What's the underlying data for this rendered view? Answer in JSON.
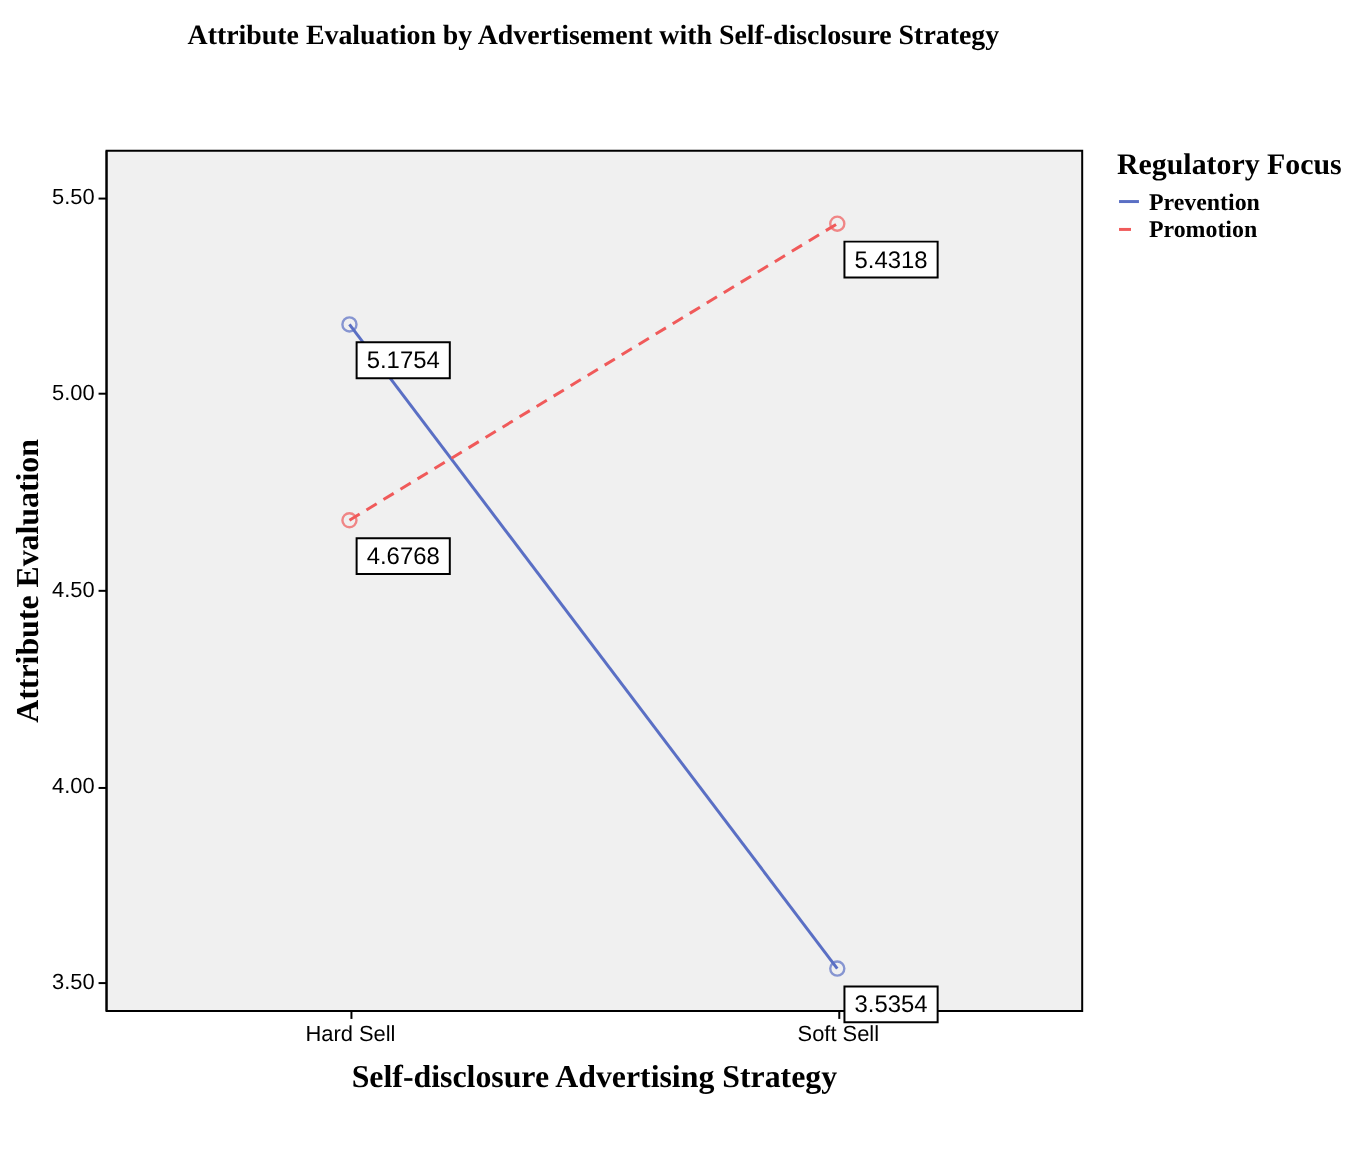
{
  "chart_data": {
    "type": "line",
    "title": "Attribute Evaluation by Advertisement with Self-disclosure Strategy",
    "xlabel": "Self-disclosure Advertising Strategy",
    "ylabel": "Attribute Evaluation",
    "legend_title": "Regulatory Focus",
    "categories": [
      "Hard Sell",
      "Soft Sell"
    ],
    "series": [
      {
        "name": "Prevention",
        "color": "#5a6fc4",
        "line_style": "solid",
        "values": [
          5.1754,
          3.5354
        ]
      },
      {
        "name": "Promotion",
        "color": "#f05a5a",
        "line_style": "dashed",
        "values": [
          4.6768,
          5.4318
        ]
      }
    ],
    "ylim": [
      3.43,
      5.62
    ],
    "yticks": [
      {
        "value": 3.5,
        "label": "3.50"
      },
      {
        "value": 4.0,
        "label": "4.00"
      },
      {
        "value": 4.5,
        "label": "4.50"
      },
      {
        "value": 5.0,
        "label": "5.00"
      },
      {
        "value": 5.5,
        "label": "5.50"
      }
    ],
    "marker": "circle",
    "data_labels": true,
    "grid": false,
    "legend": "top right"
  }
}
